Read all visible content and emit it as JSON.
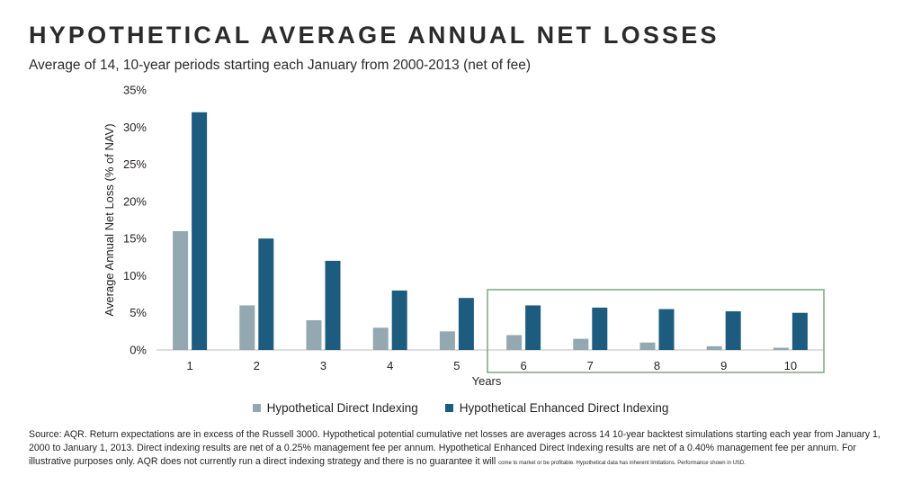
{
  "header": {
    "title": "HYPOTHETICAL AVERAGE ANNUAL NET LOSSES",
    "subtitle": "Average of 14, 10-year periods starting each January from 2000-2013 (net of fee)"
  },
  "chart_data": {
    "type": "bar",
    "xlabel": "Years",
    "ylabel": "Average Annual Net Loss (% of NAV)",
    "categories": [
      "1",
      "2",
      "3",
      "4",
      "5",
      "6",
      "7",
      "8",
      "9",
      "10"
    ],
    "ylim": [
      0,
      35
    ],
    "yticks": [
      "0%",
      "5%",
      "10%",
      "15%",
      "20%",
      "25%",
      "30%",
      "35%"
    ],
    "grid": false,
    "legend_position": "bottom-center",
    "highlight_categories": [
      "6",
      "10"
    ],
    "highlight_color": "#7aa67f",
    "series": [
      {
        "name": "Hypothetical Direct Indexing",
        "color": "#93a8b0",
        "values": [
          16,
          6,
          4,
          3,
          2.5,
          2,
          1.5,
          1,
          0.5,
          0.3
        ]
      },
      {
        "name": "Hypothetical Enhanced Direct Indexing",
        "color": "#1d5c7f",
        "values": [
          32,
          15,
          12,
          8,
          7,
          6,
          5.7,
          5.5,
          5.2,
          5
        ]
      }
    ]
  },
  "legend": {
    "items": [
      {
        "label": "Hypothetical Direct Indexing",
        "color": "#93a8b0"
      },
      {
        "label": "Hypothetical Enhanced Direct Indexing",
        "color": "#1d5c7f"
      }
    ]
  },
  "footer": {
    "source_main": "Source: AQR. Return expectations are in excess of the Russell 3000. Hypothetical potential cumulative net losses are averages across 14 10-year backtest simulations starting each year from January 1, 2000 to January 1, 2013. Direct indexing results are net of a 0.25% management fee per annum. Hypothetical Enhanced Direct Indexing results are net of a 0.40% management fee per annum. For illustrative purposes only. AQR does not currently run a direct indexing strategy and there is no guarantee it will",
    "source_small": "come to market or be profitable. Hypothetical data has inherent limitations. Performance shown in USD."
  }
}
